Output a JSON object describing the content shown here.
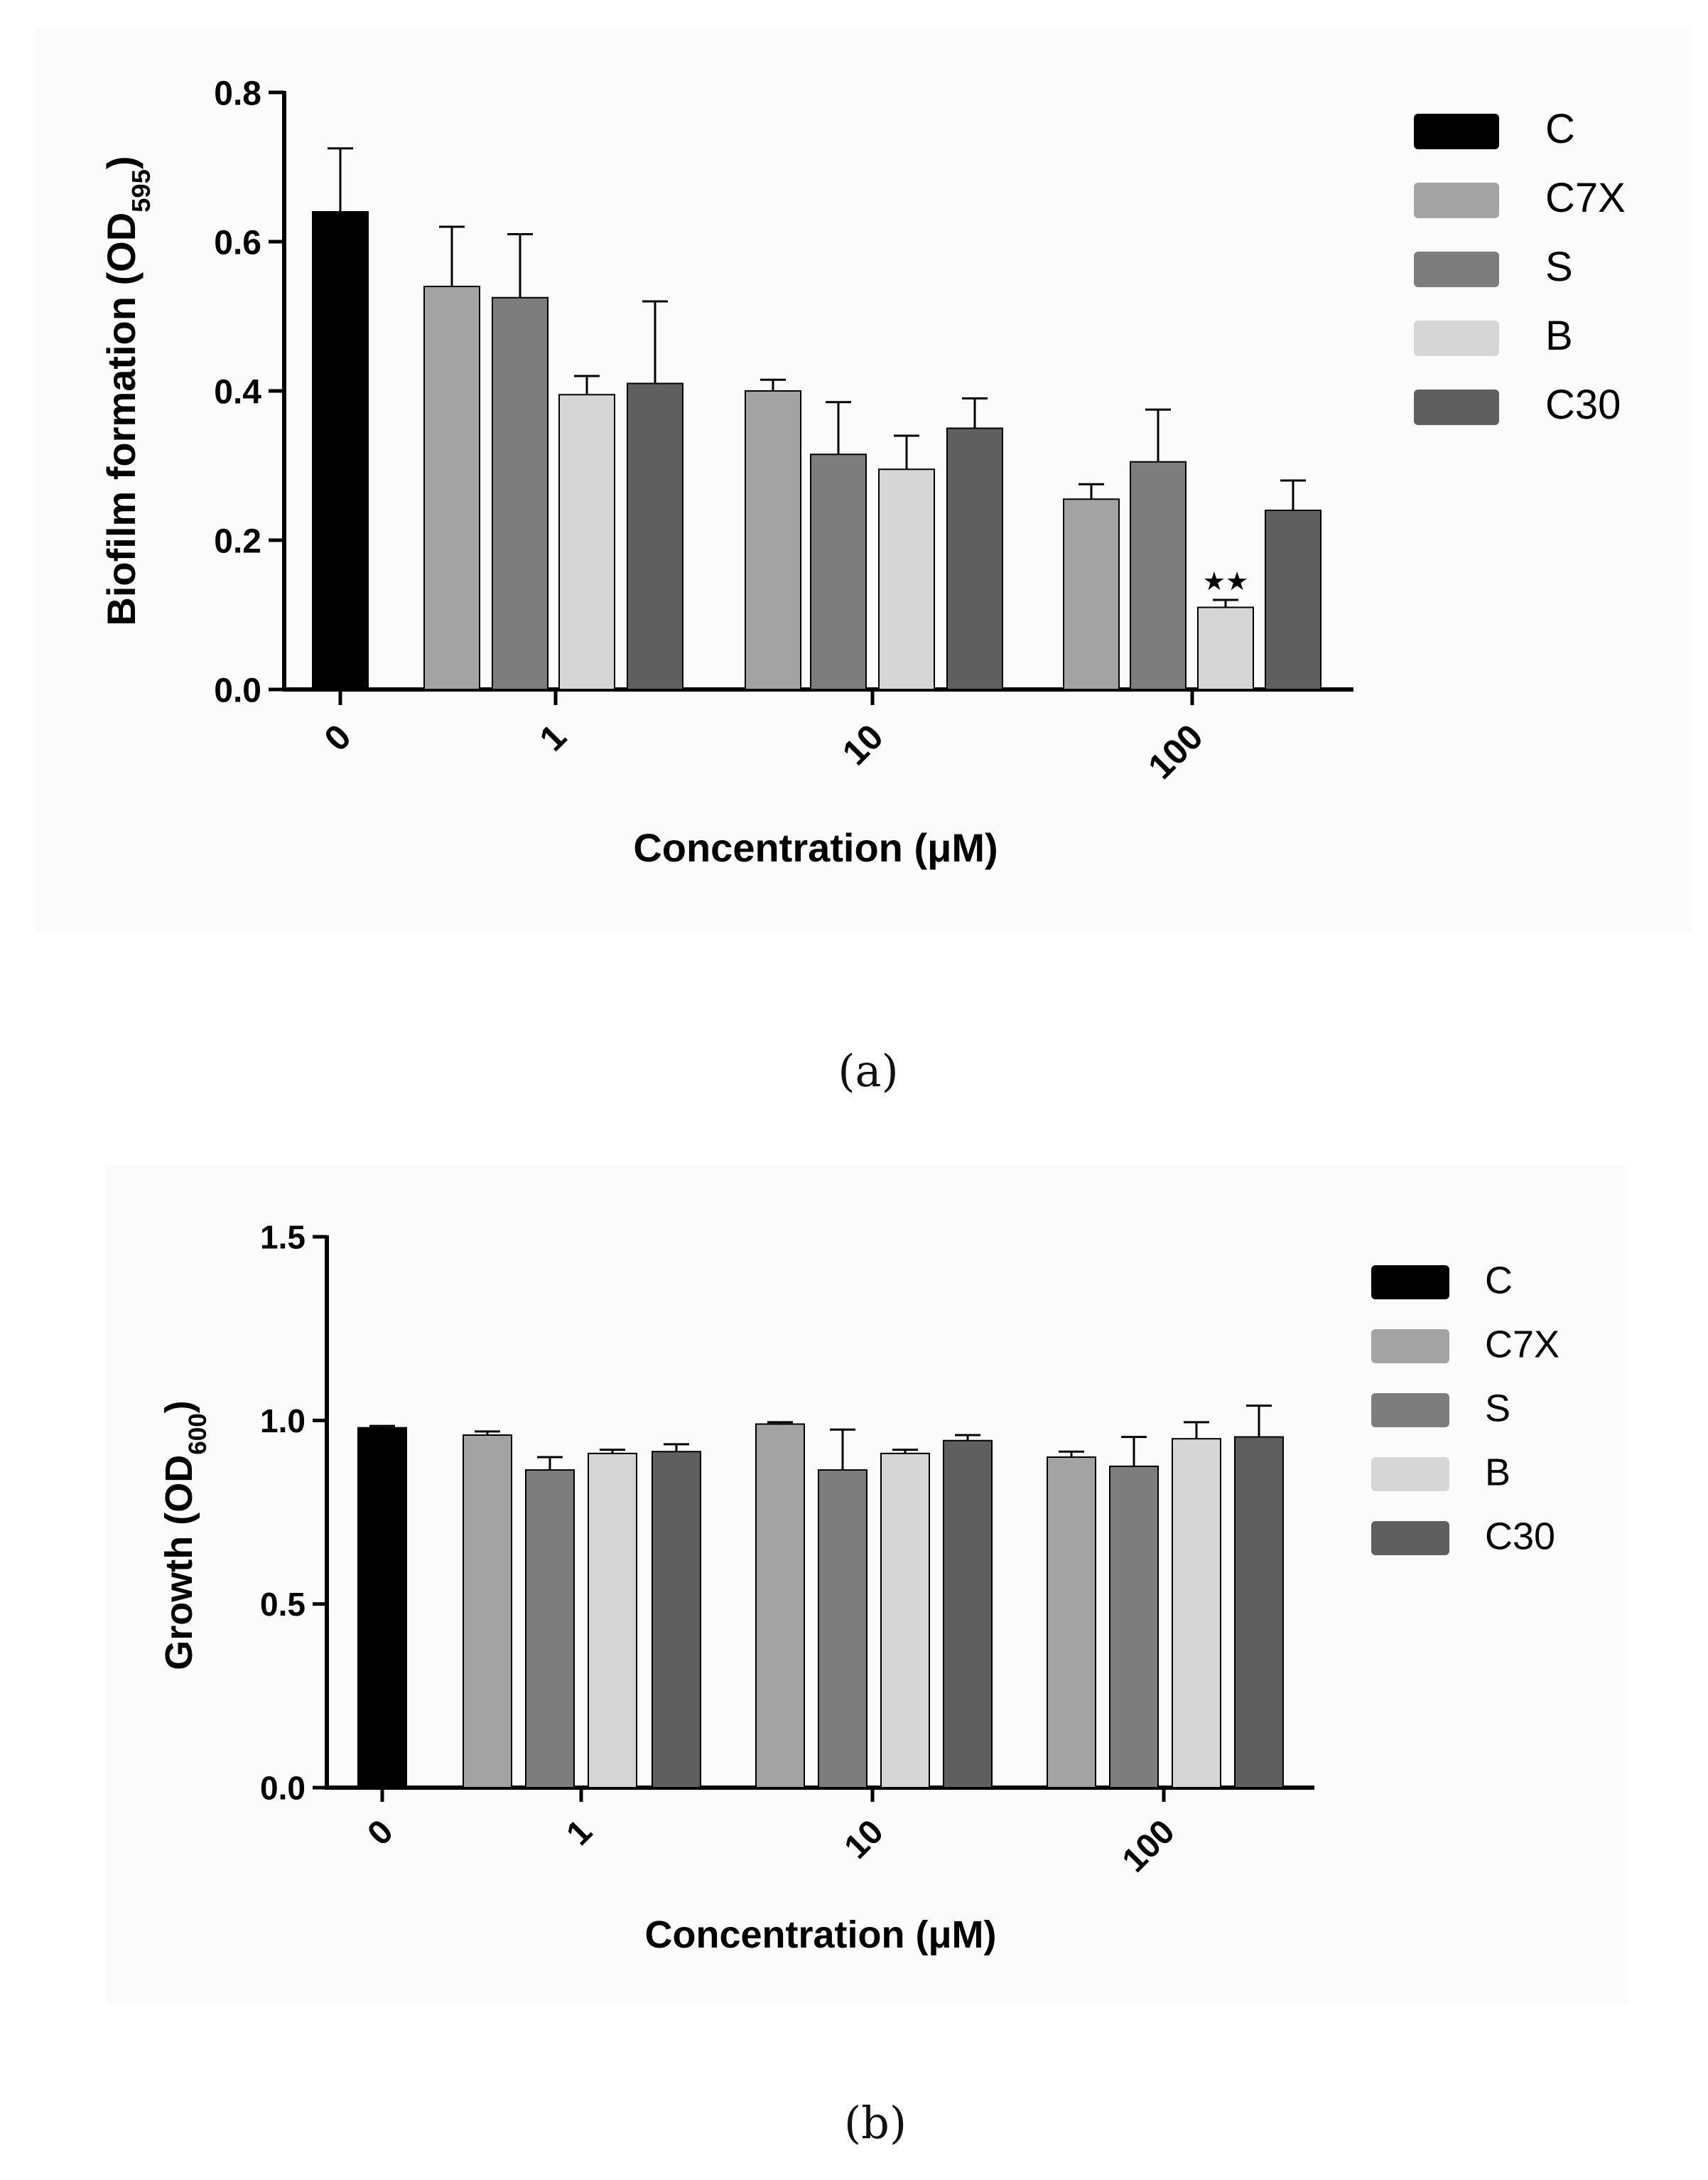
{
  "chart_data": [
    {
      "type": "bar",
      "panel_label": "(a)",
      "ylabel": "Biofilm formation (OD",
      "ylabel_sub": "595",
      "ylabel_close": ")",
      "xlabel": "Concentration (μM)",
      "ylim": [
        0,
        0.8
      ],
      "yticks": [
        "0.0",
        "0.2",
        "0.4",
        "0.6",
        "0.8"
      ],
      "ytick_values": [
        0,
        0.2,
        0.4,
        0.6,
        0.8
      ],
      "categories": [
        "0",
        "1",
        "10",
        "100"
      ],
      "legend": [
        "C",
        "C7X",
        "S",
        "B",
        "C30"
      ],
      "colors": {
        "C": "#000000",
        "C7X": "#a3a3a3",
        "S": "#7d7d7d",
        "B": "#d6d6d6",
        "C30": "#5f5f5f"
      },
      "bars": [
        {
          "series": "C",
          "category": "0",
          "value": 0.64,
          "error": 0.085
        },
        {
          "series": "C7X",
          "category": "1",
          "value": 0.54,
          "error": 0.08
        },
        {
          "series": "S",
          "category": "1",
          "value": 0.525,
          "error": 0.085
        },
        {
          "series": "B",
          "category": "1",
          "value": 0.395,
          "error": 0.025
        },
        {
          "series": "C30",
          "category": "1",
          "value": 0.41,
          "error": 0.11
        },
        {
          "series": "C7X",
          "category": "10",
          "value": 0.4,
          "error": 0.015
        },
        {
          "series": "S",
          "category": "10",
          "value": 0.315,
          "error": 0.07
        },
        {
          "series": "B",
          "category": "10",
          "value": 0.295,
          "error": 0.045
        },
        {
          "series": "C30",
          "category": "10",
          "value": 0.35,
          "error": 0.04
        },
        {
          "series": "C7X",
          "category": "100",
          "value": 0.255,
          "error": 0.02
        },
        {
          "series": "S",
          "category": "100",
          "value": 0.305,
          "error": 0.07
        },
        {
          "series": "B",
          "category": "100",
          "value": 0.11,
          "error": 0.01,
          "annotation": "★★"
        },
        {
          "series": "C30",
          "category": "100",
          "value": 0.24,
          "error": 0.04
        }
      ]
    },
    {
      "type": "bar",
      "panel_label": "(b)",
      "ylabel": "Growth (OD",
      "ylabel_sub": "600",
      "ylabel_close": ")",
      "xlabel": "Concentration (μM)",
      "ylim": [
        0,
        1.5
      ],
      "yticks": [
        "0.0",
        "0.5",
        "1.0",
        "1.5"
      ],
      "ytick_values": [
        0,
        0.5,
        1.0,
        1.5
      ],
      "categories": [
        "0",
        "1",
        "10",
        "100"
      ],
      "legend": [
        "C",
        "C7X",
        "S",
        "B",
        "C30"
      ],
      "colors": {
        "C": "#000000",
        "C7X": "#a3a3a3",
        "S": "#7d7d7d",
        "B": "#d6d6d6",
        "C30": "#5f5f5f"
      },
      "bars": [
        {
          "series": "C",
          "category": "0",
          "value": 0.98,
          "error": 0.005
        },
        {
          "series": "C7X",
          "category": "1",
          "value": 0.96,
          "error": 0.01
        },
        {
          "series": "S",
          "category": "1",
          "value": 0.865,
          "error": 0.035
        },
        {
          "series": "B",
          "category": "1",
          "value": 0.91,
          "error": 0.01
        },
        {
          "series": "C30",
          "category": "1",
          "value": 0.915,
          "error": 0.02
        },
        {
          "series": "C7X",
          "category": "10",
          "value": 0.99,
          "error": 0.005
        },
        {
          "series": "S",
          "category": "10",
          "value": 0.865,
          "error": 0.11
        },
        {
          "series": "B",
          "category": "10",
          "value": 0.91,
          "error": 0.01
        },
        {
          "series": "C30",
          "category": "10",
          "value": 0.945,
          "error": 0.015
        },
        {
          "series": "C7X",
          "category": "100",
          "value": 0.9,
          "error": 0.015
        },
        {
          "series": "S",
          "category": "100",
          "value": 0.875,
          "error": 0.08
        },
        {
          "series": "B",
          "category": "100",
          "value": 0.95,
          "error": 0.045
        },
        {
          "series": "C30",
          "category": "100",
          "value": 0.955,
          "error": 0.085
        }
      ]
    }
  ]
}
